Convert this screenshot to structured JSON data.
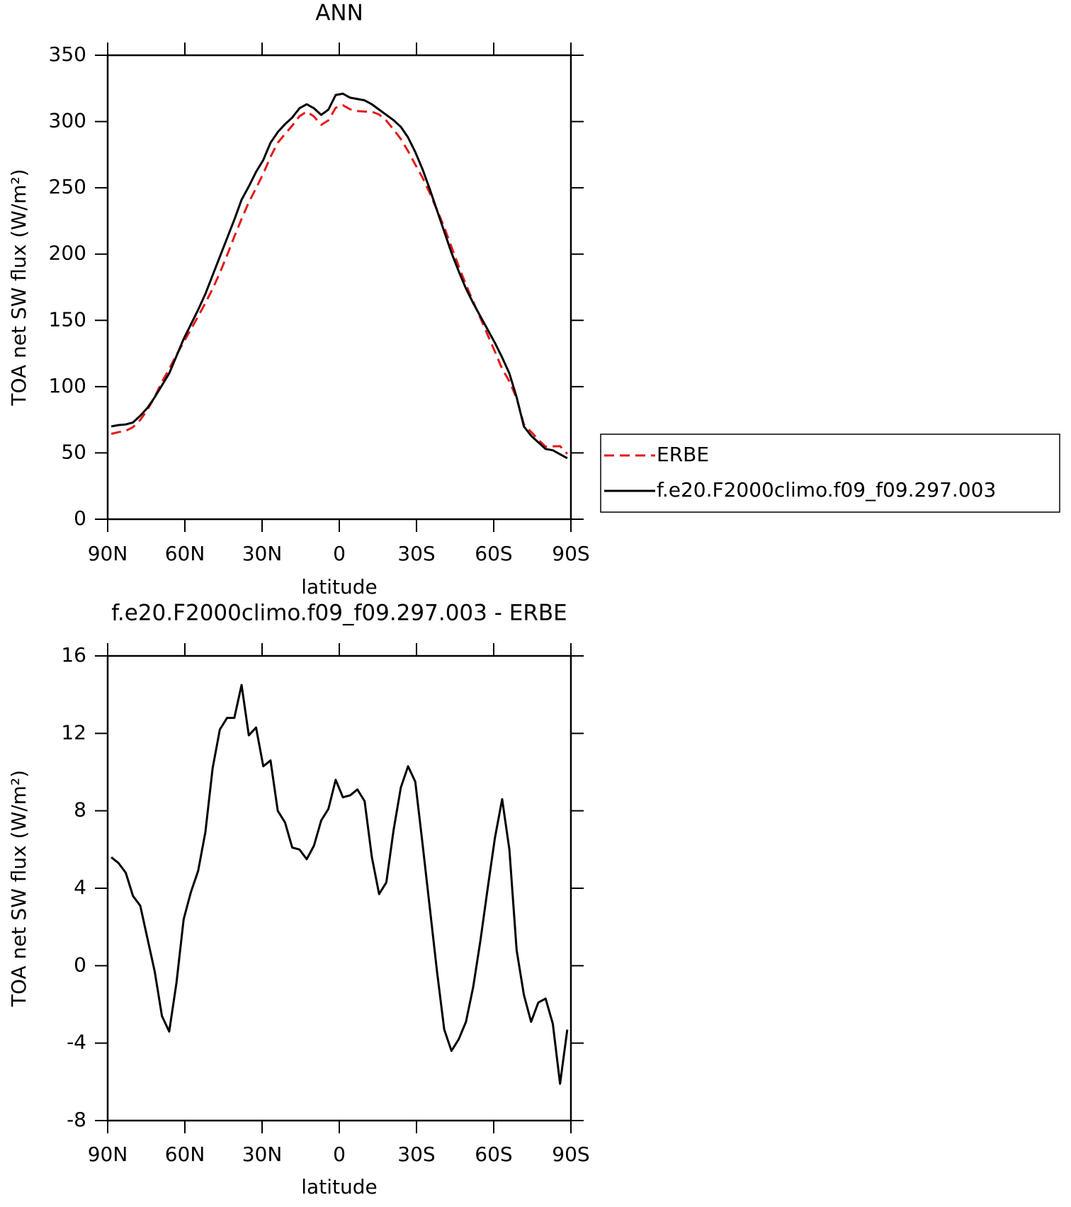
{
  "chart_data": [
    {
      "type": "line",
      "title": "ANN",
      "xlabel": "latitude",
      "ylabel": "TOA net SW flux (W/m²)",
      "x": [
        88.59,
        85.78,
        82.97,
        80.16,
        77.34,
        74.53,
        71.72,
        68.91,
        66.09,
        63.28,
        60.47,
        57.66,
        54.84,
        52.03,
        49.22,
        46.41,
        43.59,
        40.78,
        37.97,
        35.16,
        32.34,
        29.53,
        26.72,
        23.91,
        21.09,
        18.28,
        15.47,
        12.66,
        9.84,
        7.03,
        4.22,
        1.41,
        -1.41,
        -4.22,
        -7.03,
        -9.84,
        -12.66,
        -15.47,
        -18.28,
        -21.09,
        -23.91,
        -26.72,
        -29.53,
        -32.34,
        -35.16,
        -37.97,
        -40.78,
        -43.59,
        -46.41,
        -49.22,
        -52.03,
        -54.84,
        -57.66,
        -60.47,
        -63.28,
        -66.09,
        -68.91,
        -71.72,
        -74.53,
        -77.34,
        -80.16,
        -82.97,
        -85.78,
        -88.59
      ],
      "series": [
        {
          "name": "ERBE",
          "color": "#e41a1c",
          "line_style": "dashed",
          "values": [
            64.4,
            65.7,
            66.7,
            69.4,
            74.9,
            82.6,
            92.3,
            103.6,
            113.4,
            123.9,
            133.6,
            143.2,
            153.1,
            163.1,
            173.8,
            185.8,
            199.2,
            213.2,
            226.5,
            239.1,
            249.7,
            260.7,
            273.4,
            284,
            290.6,
            296.9,
            304,
            307.5,
            303.8,
            297.5,
            300.9,
            310.4,
            312.3,
            309.2,
            307.9,
            307.5,
            307.4,
            305.3,
            300.7,
            294,
            286.8,
            277.7,
            267.5,
            257.7,
            246,
            233.3,
            220.3,
            205.4,
            190.8,
            176.9,
            164.1,
            151.7,
            139,
            126.4,
            113.4,
            104,
            91.2,
            71.5,
            65.9,
            59.9,
            54.7,
            55,
            55.1,
            49.3
          ]
        },
        {
          "name": "f.e20.F2000climo.f09_f09.297.003",
          "color": "#000000",
          "line_style": "solid",
          "values": [
            70,
            71,
            71.5,
            73,
            78,
            84,
            92,
            101,
            110,
            123,
            136,
            147,
            158,
            170,
            184,
            198,
            212,
            226,
            241,
            251,
            262,
            271,
            284,
            292,
            298,
            303,
            310,
            313,
            310,
            305,
            309,
            320,
            321,
            318,
            317,
            316,
            313,
            309,
            305,
            301,
            296,
            288,
            277,
            264,
            249,
            233,
            217,
            201,
            187,
            174,
            163,
            153,
            143,
            133,
            122,
            110,
            92,
            70,
            63,
            58,
            53,
            52,
            49,
            46
          ]
        }
      ],
      "xlim": [
        90,
        -90
      ],
      "xticks": [
        {
          "value": 90,
          "label": "90N"
        },
        {
          "value": 60,
          "label": "60N"
        },
        {
          "value": 30,
          "label": "30N"
        },
        0,
        {
          "value": -30,
          "label": "30S"
        },
        {
          "value": -60,
          "label": "60S"
        },
        {
          "value": -90,
          "label": "90S"
        }
      ],
      "ylim": [
        0,
        350
      ],
      "yticks": [
        0,
        50,
        100,
        150,
        200,
        250,
        300,
        350
      ],
      "legend": "outside-right"
    },
    {
      "type": "line",
      "title": "f.e20.F2000climo.f09_f09.297.003 - ERBE",
      "xlabel": "latitude",
      "ylabel": "TOA net SW flux (W/m²)",
      "x": [
        88.59,
        85.78,
        82.97,
        80.16,
        77.34,
        74.53,
        71.72,
        68.91,
        66.09,
        63.28,
        60.47,
        57.66,
        54.84,
        52.03,
        49.22,
        46.41,
        43.59,
        40.78,
        37.97,
        35.16,
        32.34,
        29.53,
        26.72,
        23.91,
        21.09,
        18.28,
        15.47,
        12.66,
        9.84,
        7.03,
        4.22,
        1.41,
        -1.41,
        -4.22,
        -7.03,
        -9.84,
        -12.66,
        -15.47,
        -18.28,
        -21.09,
        -23.91,
        -26.72,
        -29.53,
        -32.34,
        -35.16,
        -37.97,
        -40.78,
        -43.59,
        -46.41,
        -49.22,
        -52.03,
        -54.84,
        -57.66,
        -60.47,
        -63.28,
        -66.09,
        -68.91,
        -71.72,
        -74.53,
        -77.34,
        -80.16,
        -82.97,
        -85.78,
        -88.59
      ],
      "color": "#000000",
      "values": [
        5.6,
        5.3,
        4.8,
        3.6,
        3.1,
        1.4,
        -0.3,
        -2.6,
        -3.4,
        -0.9,
        2.4,
        3.8,
        4.9,
        6.9,
        10.2,
        12.2,
        12.8,
        12.8,
        14.5,
        11.9,
        12.3,
        10.3,
        10.6,
        8,
        7.4,
        6.1,
        6,
        5.5,
        6.2,
        7.5,
        8.1,
        9.6,
        8.7,
        8.8,
        9.1,
        8.5,
        5.6,
        3.7,
        4.3,
        7,
        9.2,
        10.3,
        9.5,
        6.3,
        3,
        -0.3,
        -3.3,
        -4.4,
        -3.8,
        -2.9,
        -1.1,
        1.3,
        4,
        6.6,
        8.6,
        6,
        0.8,
        -1.5,
        -2.9,
        -1.9,
        -1.7,
        -3,
        -6.1,
        -3.3
      ],
      "xlim": [
        90,
        -90
      ],
      "xticks": [
        {
          "value": 90,
          "label": "90N"
        },
        {
          "value": 60,
          "label": "60N"
        },
        {
          "value": 30,
          "label": "30N"
        },
        0,
        {
          "value": -30,
          "label": "30S"
        },
        {
          "value": -60,
          "label": "60S"
        },
        {
          "value": -90,
          "label": "90S"
        }
      ],
      "ylim": [
        -8,
        16
      ],
      "yticks": [
        -8,
        -4,
        0,
        4,
        8,
        12,
        16
      ]
    }
  ]
}
